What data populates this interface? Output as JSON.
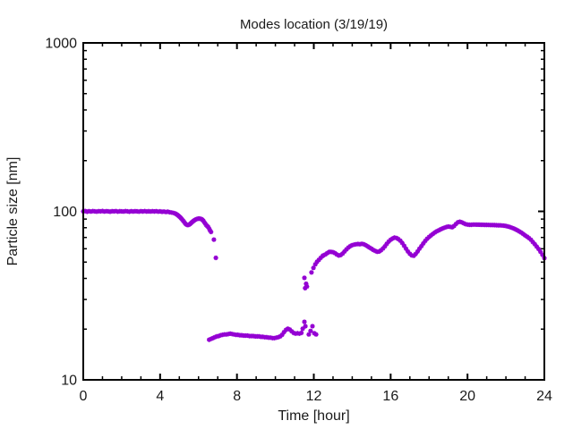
{
  "chart_data": {
    "type": "scatter",
    "title": "Modes location (3/19/19)",
    "xlabel": "Time [hour]",
    "ylabel": "Particle size [nm]",
    "xlim": [
      0,
      24
    ],
    "ylim": [
      10,
      1000
    ],
    "yscale": "log",
    "xticks": [
      0,
      4,
      8,
      12,
      16,
      20,
      24
    ],
    "x_minor_step": 1,
    "yticks": [
      10,
      100,
      1000
    ],
    "grid": false,
    "legend": "none",
    "marker": "asterisk",
    "marker_color": "#9400d3",
    "axis_color": "#000000",
    "background": "#ffffff",
    "series": [
      {
        "name": "mode-location",
        "points": [
          [
            0,
            100
          ],
          [
            0.1,
            100.5
          ],
          [
            0.2,
            99.5
          ],
          [
            0.3,
            100.2
          ],
          [
            0.4,
            99.8
          ],
          [
            0.5,
            100.4
          ],
          [
            0.6,
            100
          ],
          [
            0.7,
            99.6
          ],
          [
            0.8,
            100.3
          ],
          [
            0.9,
            100
          ],
          [
            1,
            100.5
          ],
          [
            1.1,
            99.7
          ],
          [
            1.2,
            100.2
          ],
          [
            1.3,
            100
          ],
          [
            1.4,
            99.5
          ],
          [
            1.5,
            100.3
          ],
          [
            1.6,
            100
          ],
          [
            1.7,
            100.4
          ],
          [
            1.8,
            99.6
          ],
          [
            1.9,
            100.1
          ],
          [
            2,
            100
          ],
          [
            2.1,
            99.8
          ],
          [
            2.2,
            100.4
          ],
          [
            2.3,
            100
          ],
          [
            2.4,
            99.5
          ],
          [
            2.5,
            100.2
          ],
          [
            2.6,
            99.8
          ],
          [
            2.7,
            100.3
          ],
          [
            2.8,
            100
          ],
          [
            2.9,
            99.6
          ],
          [
            3,
            100.2
          ],
          [
            3.1,
            99.9
          ],
          [
            3.2,
            100.4
          ],
          [
            3.3,
            99.7
          ],
          [
            3.4,
            100.1
          ],
          [
            3.5,
            99.8
          ],
          [
            3.6,
            100.3
          ],
          [
            3.7,
            99.9
          ],
          [
            3.8,
            100.2
          ],
          [
            3.9,
            99.6
          ],
          [
            4,
            100
          ],
          [
            4.1,
            99.4
          ],
          [
            4.2,
            99.8
          ],
          [
            4.3,
            99.2
          ],
          [
            4.4,
            99.5
          ],
          [
            4.5,
            98.8
          ],
          [
            4.6,
            98.4
          ],
          [
            4.7,
            97.8
          ],
          [
            4.8,
            97
          ],
          [
            4.85,
            96.2
          ],
          [
            4.9,
            95.3
          ],
          [
            4.95,
            94.3
          ],
          [
            5,
            93.2
          ],
          [
            5.05,
            92
          ],
          [
            5.1,
            90.8
          ],
          [
            5.15,
            89.5
          ],
          [
            5.2,
            88
          ],
          [
            5.25,
            86.5
          ],
          [
            5.3,
            85
          ],
          [
            5.35,
            83.8
          ],
          [
            5.4,
            83.2
          ],
          [
            5.45,
            83
          ],
          [
            5.5,
            83.3
          ],
          [
            5.55,
            84
          ],
          [
            5.6,
            85
          ],
          [
            5.65,
            86
          ],
          [
            5.7,
            87
          ],
          [
            5.75,
            88
          ],
          [
            5.8,
            88.8
          ],
          [
            5.85,
            89.5
          ],
          [
            5.9,
            90
          ],
          [
            5.95,
            90.4
          ],
          [
            6,
            90.6
          ],
          [
            6.05,
            90.6
          ],
          [
            6.1,
            90.4
          ],
          [
            6.15,
            90
          ],
          [
            6.2,
            89.2
          ],
          [
            6.25,
            88
          ],
          [
            6.3,
            86.3
          ],
          [
            6.35,
            84.5
          ],
          [
            6.4,
            83
          ],
          [
            6.45,
            81.8
          ],
          [
            6.5,
            80.8
          ],
          [
            6.55,
            79
          ],
          [
            6.6,
            77
          ],
          [
            6.65,
            75.5
          ],
          [
            6.8,
            68
          ],
          [
            6.9,
            53
          ],
          [
            6.55,
            17.3
          ],
          [
            6.65,
            17.5
          ],
          [
            6.75,
            17.7
          ],
          [
            6.85,
            17.9
          ],
          [
            6.95,
            18.1
          ],
          [
            7.05,
            18.2
          ],
          [
            7.15,
            18.4
          ],
          [
            7.25,
            18.5
          ],
          [
            7.35,
            18.6
          ],
          [
            7.45,
            18.6
          ],
          [
            7.55,
            18.7
          ],
          [
            7.65,
            18.8
          ],
          [
            7.75,
            18.7
          ],
          [
            7.85,
            18.6
          ],
          [
            7.95,
            18.5
          ],
          [
            8.05,
            18.5
          ],
          [
            8.15,
            18.4
          ],
          [
            8.25,
            18.4
          ],
          [
            8.35,
            18.3
          ],
          [
            8.45,
            18.3
          ],
          [
            8.55,
            18.3
          ],
          [
            8.65,
            18.2
          ],
          [
            8.75,
            18.2
          ],
          [
            8.85,
            18.2
          ],
          [
            8.95,
            18.1
          ],
          [
            9.05,
            18.1
          ],
          [
            9.15,
            18.1
          ],
          [
            9.25,
            18
          ],
          [
            9.35,
            18
          ],
          [
            9.45,
            17.9
          ],
          [
            9.55,
            17.9
          ],
          [
            9.65,
            17.8
          ],
          [
            9.75,
            17.8
          ],
          [
            9.85,
            17.7
          ],
          [
            9.95,
            17.7
          ],
          [
            10.05,
            17.8
          ],
          [
            10.15,
            17.9
          ],
          [
            10.25,
            18.1
          ],
          [
            10.35,
            18.5
          ],
          [
            10.45,
            19.2
          ],
          [
            10.55,
            19.8
          ],
          [
            10.65,
            20.1
          ],
          [
            10.75,
            19.9
          ],
          [
            10.85,
            19.4
          ],
          [
            10.95,
            19
          ],
          [
            11.05,
            18.8
          ],
          [
            11.15,
            18.9
          ],
          [
            11.25,
            18.8
          ],
          [
            11.35,
            19
          ],
          [
            11.42,
            20.1
          ],
          [
            11.51,
            22.1
          ],
          [
            11.56,
            20.8
          ],
          [
            11.74,
            18.6
          ],
          [
            11.83,
            19.5
          ],
          [
            11.93,
            20.8
          ],
          [
            12.03,
            18.9
          ],
          [
            12.12,
            18.6
          ],
          [
            11.51,
            40.3
          ],
          [
            11.55,
            35
          ],
          [
            11.6,
            37.2
          ],
          [
            11.64,
            35.8
          ],
          [
            11.88,
            43.4
          ],
          [
            11.98,
            46.2
          ],
          [
            12.08,
            48.5
          ],
          [
            12.17,
            50.2
          ],
          [
            12.26,
            51.5
          ],
          [
            12.36,
            53
          ],
          [
            12.45,
            54.2
          ],
          [
            12.5,
            54.8
          ],
          [
            12.6,
            55.5
          ],
          [
            12.7,
            56.5
          ],
          [
            12.8,
            57.4
          ],
          [
            12.9,
            57.5
          ],
          [
            13,
            57.2
          ],
          [
            13.1,
            56.5
          ],
          [
            13.2,
            55.5
          ],
          [
            13.3,
            54.7
          ],
          [
            13.4,
            55
          ],
          [
            13.5,
            56.2
          ],
          [
            13.6,
            57.8
          ],
          [
            13.7,
            59.5
          ],
          [
            13.8,
            61
          ],
          [
            13.9,
            62.2
          ],
          [
            14,
            63
          ],
          [
            14.1,
            63.5
          ],
          [
            14.2,
            63.8
          ],
          [
            14.3,
            64
          ],
          [
            14.4,
            63.8
          ],
          [
            14.5,
            64.2
          ],
          [
            14.6,
            63.8
          ],
          [
            14.7,
            63
          ],
          [
            14.8,
            62
          ],
          [
            14.9,
            61
          ],
          [
            15,
            60
          ],
          [
            15.1,
            59
          ],
          [
            15.2,
            58.2
          ],
          [
            15.3,
            57.6
          ],
          [
            15.4,
            57.8
          ],
          [
            15.5,
            58.8
          ],
          [
            15.6,
            60.2
          ],
          [
            15.7,
            62
          ],
          [
            15.8,
            64.2
          ],
          [
            15.9,
            66.2
          ],
          [
            16,
            67.8
          ],
          [
            16.1,
            69
          ],
          [
            16.2,
            69.8
          ],
          [
            16.3,
            69.5
          ],
          [
            16.4,
            68.5
          ],
          [
            16.5,
            67
          ],
          [
            16.6,
            65
          ],
          [
            16.7,
            62.5
          ],
          [
            16.8,
            60
          ],
          [
            16.9,
            57.8
          ],
          [
            17,
            56
          ],
          [
            17.1,
            54.8
          ],
          [
            17.2,
            54.5
          ],
          [
            17.3,
            55.8
          ],
          [
            17.4,
            57.8
          ],
          [
            17.5,
            60
          ],
          [
            17.6,
            62.2
          ],
          [
            17.7,
            64.5
          ],
          [
            17.8,
            66.8
          ],
          [
            17.9,
            68.8
          ],
          [
            18,
            70.5
          ],
          [
            18.1,
            72
          ],
          [
            18.2,
            73.5
          ],
          [
            18.3,
            75
          ],
          [
            18.4,
            76.2
          ],
          [
            18.5,
            77.2
          ],
          [
            18.6,
            78.2
          ],
          [
            18.7,
            79.2
          ],
          [
            18.8,
            80
          ],
          [
            18.9,
            80.8
          ],
          [
            19,
            81.2
          ],
          [
            19.1,
            81
          ],
          [
            19.2,
            80.5
          ],
          [
            19.3,
            81.8
          ],
          [
            19.4,
            84.2
          ],
          [
            19.5,
            86.2
          ],
          [
            19.6,
            86.8
          ],
          [
            19.7,
            86.2
          ],
          [
            19.8,
            85
          ],
          [
            19.9,
            84
          ],
          [
            20,
            83.5
          ],
          [
            20.1,
            83.3
          ],
          [
            20.2,
            83.3
          ],
          [
            20.3,
            83.5
          ],
          [
            20.4,
            83.5
          ],
          [
            20.5,
            83.4
          ],
          [
            20.6,
            83.4
          ],
          [
            20.7,
            83.3
          ],
          [
            20.8,
            83.3
          ],
          [
            20.9,
            83.2
          ],
          [
            21,
            83.2
          ],
          [
            21.1,
            83.1
          ],
          [
            21.2,
            83
          ],
          [
            21.3,
            83
          ],
          [
            21.4,
            82.9
          ],
          [
            21.5,
            82.8
          ],
          [
            21.6,
            82.7
          ],
          [
            21.7,
            82.6
          ],
          [
            21.8,
            82.4
          ],
          [
            21.9,
            82.2
          ],
          [
            22,
            81.8
          ],
          [
            22.1,
            81.3
          ],
          [
            22.2,
            80.8
          ],
          [
            22.3,
            80
          ],
          [
            22.4,
            79.2
          ],
          [
            22.5,
            78.2
          ],
          [
            22.6,
            77.2
          ],
          [
            22.7,
            76
          ],
          [
            22.8,
            74.8
          ],
          [
            22.9,
            73.4
          ],
          [
            23,
            72
          ],
          [
            23.1,
            70.8
          ],
          [
            23.2,
            69.4
          ],
          [
            23.3,
            67.8
          ],
          [
            23.4,
            65.8
          ],
          [
            23.5,
            63.8
          ],
          [
            23.6,
            61.8
          ],
          [
            23.7,
            59.8
          ],
          [
            23.8,
            57.6
          ],
          [
            23.9,
            55.2
          ],
          [
            24,
            52.8
          ]
        ]
      }
    ]
  }
}
